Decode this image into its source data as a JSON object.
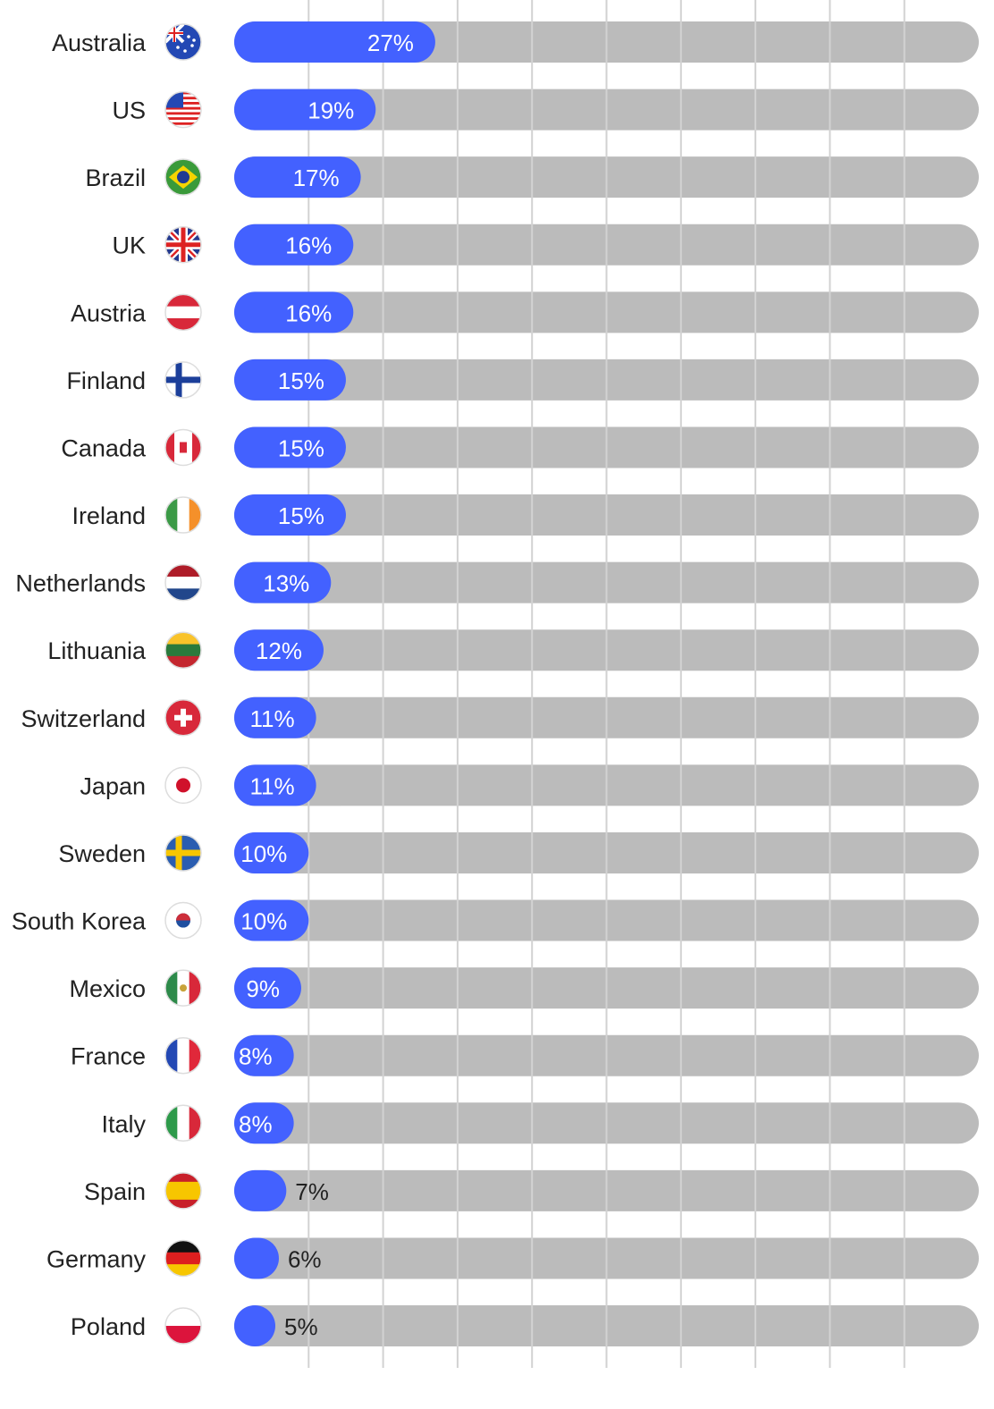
{
  "chart_data": {
    "type": "bar",
    "orientation": "horizontal",
    "categories": [
      "Australia",
      "US",
      "Brazil",
      "UK",
      "Austria",
      "Finland",
      "Canada",
      "Ireland",
      "Netherlands",
      "Lithuania",
      "Switzerland",
      "Japan",
      "Sweden",
      "South Korea",
      "Mexico",
      "France",
      "Italy",
      "Spain",
      "Germany",
      "Poland"
    ],
    "values": [
      27,
      19,
      17,
      16,
      16,
      15,
      15,
      15,
      13,
      12,
      11,
      11,
      10,
      10,
      9,
      8,
      8,
      7,
      6,
      5
    ],
    "value_labels": [
      "27%",
      "19%",
      "17%",
      "16%",
      "16%",
      "15%",
      "15%",
      "15%",
      "13%",
      "12%",
      "11%",
      "11%",
      "10%",
      "10%",
      "9%",
      "8%",
      "8%",
      "7%",
      "6%",
      "5%"
    ],
    "color": "#4361ff",
    "track_color": "#bbbbbb",
    "xlim": [
      0,
      100
    ],
    "xticks": [
      10,
      20,
      30,
      40,
      50,
      60,
      70,
      80,
      90
    ],
    "grid": true
  }
}
